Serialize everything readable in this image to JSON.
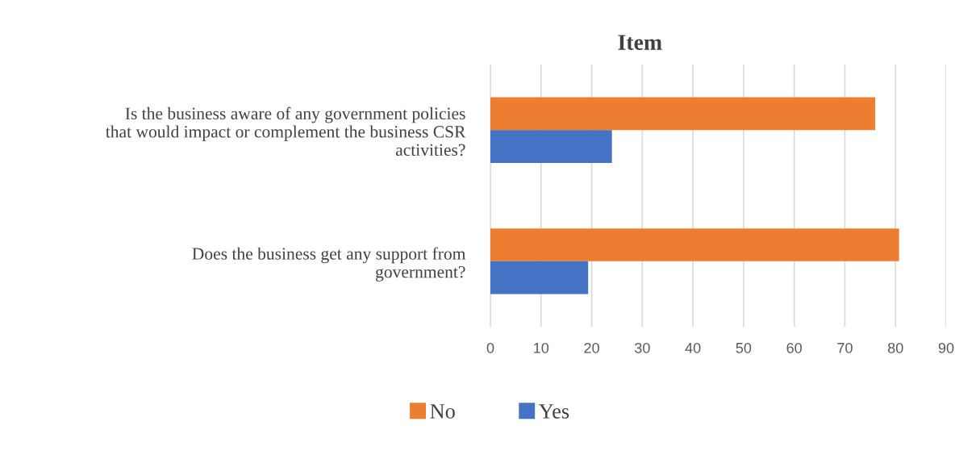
{
  "chart_data": {
    "type": "bar",
    "orientation": "horizontal",
    "title": "Item",
    "categories": [
      "Is the business aware of any government policies\nthat would impact or complement the business CSR\nactivities?",
      "Does the business get any support from\ngovernment?"
    ],
    "series": [
      {
        "name": "No",
        "color": "#ed7d31",
        "values": [
          76,
          80.7
        ]
      },
      {
        "name": "Yes",
        "color": "#4472c4",
        "values": [
          24,
          19.3
        ]
      }
    ],
    "xlim": [
      0,
      90
    ],
    "xticks": [
      0,
      10,
      20,
      30,
      40,
      50,
      60,
      70,
      80,
      90
    ],
    "grid": "x",
    "legend": "bottom"
  }
}
